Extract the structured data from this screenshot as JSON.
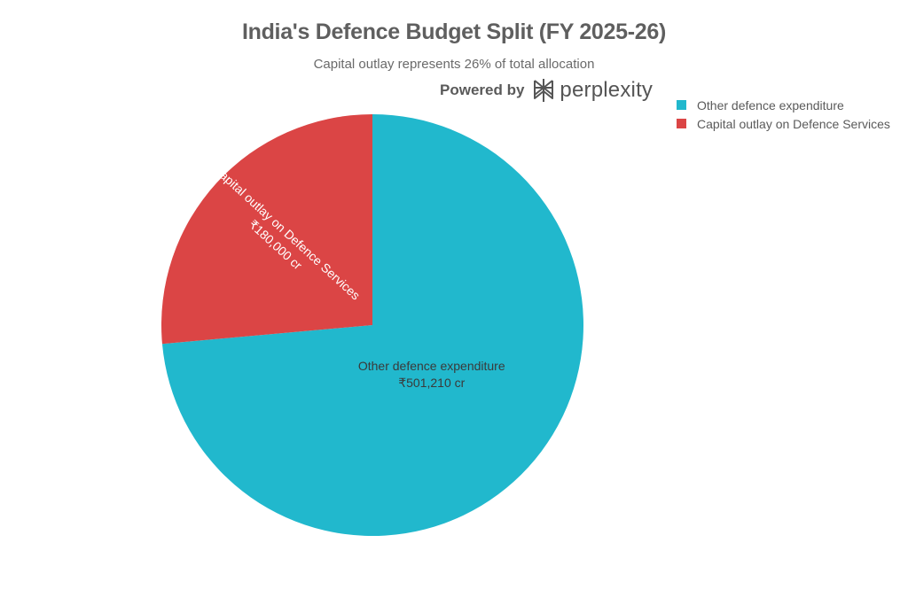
{
  "brand": {
    "powered_by": "Powered by",
    "name": "perplexity",
    "icon": "perplexity-logo-icon"
  },
  "chart_data": {
    "type": "pie",
    "title": "India's Defence Budget Split (FY 2025-26)",
    "subtitle": "Capital outlay represents 26% of total allocation",
    "legend_position": "top-right",
    "slices": [
      {
        "label": "Other defence expenditure",
        "value": 501210,
        "value_label": "₹501,210 cr",
        "color": "#21b8cd"
      },
      {
        "label": "Capital outlay on Defence Services",
        "value": 180000,
        "value_label": "₹180,000 cr",
        "color": "#db4545"
      }
    ]
  }
}
